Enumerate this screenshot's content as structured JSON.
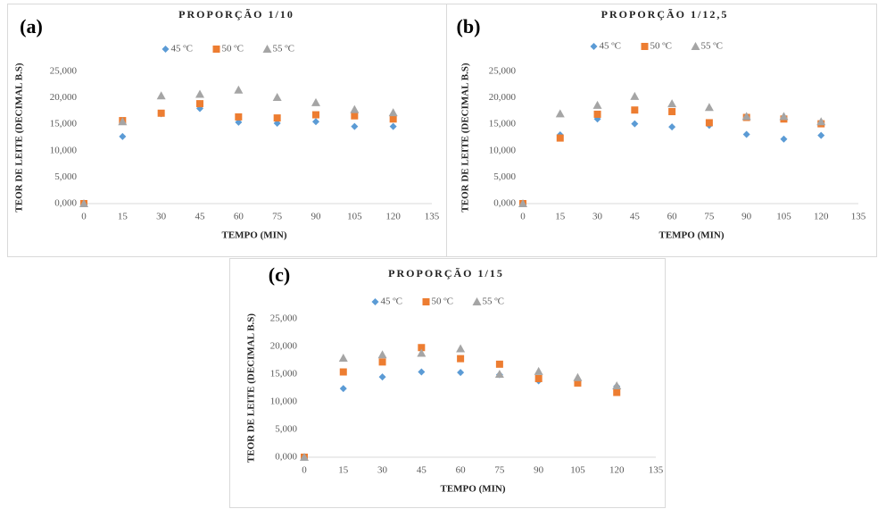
{
  "chart_data": [
    {
      "type": "scatter",
      "panel_label": "(a)",
      "title": "PROPORÇÃO 1/10",
      "x_label": "TEMPO (MIN)",
      "y_label": "TEOR DE LEITE (DECIMAL B.S)",
      "x": [
        0,
        15,
        30,
        45,
        60,
        75,
        90,
        105,
        120
      ],
      "series": [
        {
          "name": "45 ºC",
          "color": "#5b9bd5",
          "marker": "diamond",
          "values": [
            0,
            12.7,
            17.0,
            18.0,
            15.4,
            15.2,
            15.5,
            14.6,
            14.6
          ]
        },
        {
          "name": "50 ºC",
          "color": "#ed7d31",
          "marker": "square",
          "values": [
            0,
            15.7,
            17.1,
            18.9,
            16.4,
            16.2,
            16.8,
            16.6,
            16.0
          ]
        },
        {
          "name": "55 ºC",
          "color": "#a5a5a5",
          "marker": "triangle",
          "values": [
            0,
            15.5,
            20.4,
            20.7,
            21.5,
            20.1,
            19.1,
            17.8,
            17.2
          ]
        }
      ],
      "xlim": [
        0,
        135
      ],
      "xticks": [
        0,
        15,
        30,
        45,
        60,
        75,
        90,
        105,
        120,
        135
      ],
      "ylim": [
        0,
        25
      ],
      "yticks": [
        {
          "value": 0,
          "label": "0,000"
        },
        {
          "value": 5,
          "label": "5,000"
        },
        {
          "value": 10,
          "label": "10,000"
        },
        {
          "value": 15,
          "label": "15,000"
        },
        {
          "value": 20,
          "label": "20,000"
        },
        {
          "value": 25,
          "label": "25,000"
        }
      ],
      "legend": "top"
    },
    {
      "type": "scatter",
      "panel_label": "(b)",
      "title": "PROPORÇÃO 1/12,5",
      "x_label": "TEMPO (MIN)",
      "y_label": "TEOR DE LEITE (DECIMAL B.S)",
      "x": [
        0,
        15,
        30,
        45,
        60,
        75,
        90,
        105,
        120
      ],
      "series": [
        {
          "name": "45 ºC",
          "color": "#5b9bd5",
          "marker": "diamond",
          "values": [
            0,
            13.0,
            16.0,
            15.1,
            14.5,
            14.8,
            13.1,
            12.2,
            12.9
          ]
        },
        {
          "name": "50 ºC",
          "color": "#ed7d31",
          "marker": "square",
          "values": [
            0,
            12.4,
            16.9,
            17.7,
            17.4,
            15.3,
            16.3,
            16.0,
            15.1
          ]
        },
        {
          "name": "55 ºC",
          "color": "#a5a5a5",
          "marker": "triangle",
          "values": [
            0,
            17.0,
            18.6,
            20.3,
            18.9,
            18.2,
            16.5,
            16.5,
            15.5
          ]
        }
      ],
      "xlim": [
        0,
        135
      ],
      "xticks": [
        0,
        15,
        30,
        45,
        60,
        75,
        90,
        105,
        120,
        135
      ],
      "ylim": [
        0,
        25
      ],
      "yticks": [
        {
          "value": 0,
          "label": "0,000"
        },
        {
          "value": 5,
          "label": "5,000"
        },
        {
          "value": 10,
          "label": "10,000"
        },
        {
          "value": 15,
          "label": "15,000"
        },
        {
          "value": 20,
          "label": "20,000"
        },
        {
          "value": 25,
          "label": "25,000"
        }
      ],
      "legend": "top"
    },
    {
      "type": "scatter",
      "panel_label": "(c)",
      "title": "PROPORÇÃO 1/15",
      "x_label": "TEMPO (MIN)",
      "y_label": "TEOR DE LEITE (DECIMAL B.S)",
      "x": [
        0,
        15,
        30,
        45,
        60,
        75,
        90,
        105,
        120
      ],
      "series": [
        {
          "name": "45 ºC",
          "color": "#5b9bd5",
          "marker": "diamond",
          "values": [
            0,
            12.4,
            14.5,
            15.4,
            15.3,
            14.9,
            13.8,
            13.5,
            12.8
          ]
        },
        {
          "name": "50 ºC",
          "color": "#ed7d31",
          "marker": "square",
          "values": [
            0,
            15.4,
            17.2,
            19.8,
            17.8,
            16.8,
            14.2,
            13.4,
            11.7
          ]
        },
        {
          "name": "55 ºC",
          "color": "#a5a5a5",
          "marker": "triangle",
          "values": [
            0,
            17.9,
            18.5,
            18.8,
            19.6,
            15.0,
            15.5,
            14.4,
            12.9
          ]
        }
      ],
      "xlim": [
        0,
        135
      ],
      "xticks": [
        0,
        15,
        30,
        45,
        60,
        75,
        90,
        105,
        120,
        135
      ],
      "ylim": [
        0,
        25
      ],
      "yticks": [
        {
          "value": 0,
          "label": "0,000"
        },
        {
          "value": 5,
          "label": "5,000"
        },
        {
          "value": 10,
          "label": "10,000"
        },
        {
          "value": 15,
          "label": "15,000"
        },
        {
          "value": 20,
          "label": "20,000"
        },
        {
          "value": 25,
          "label": "25,000"
        }
      ],
      "legend": "top"
    }
  ]
}
